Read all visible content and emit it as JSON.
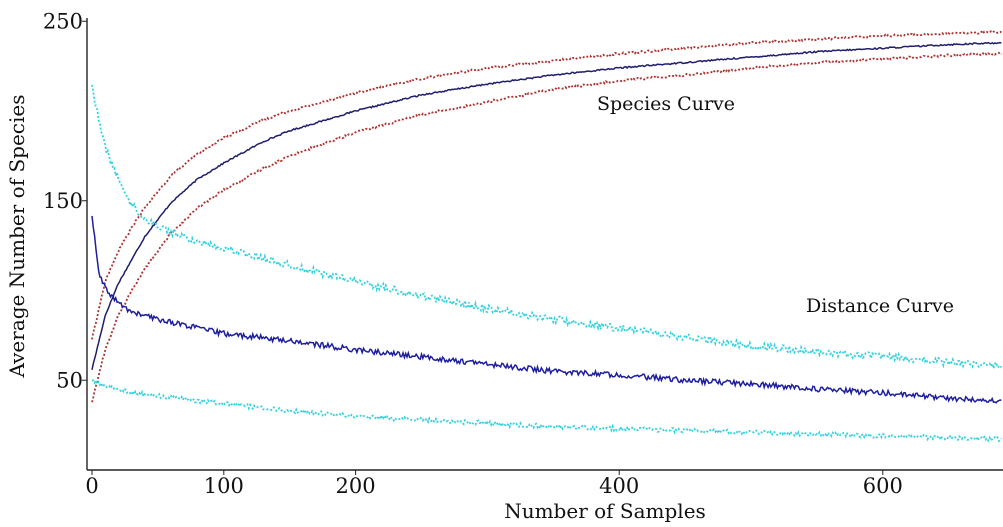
{
  "chart_data": {
    "type": "line",
    "title": "",
    "xlabel": "Number of Samples",
    "ylabel": "Average Number of Species",
    "xlim": [
      0,
      690
    ],
    "ylim": [
      0,
      250
    ],
    "xticks": [
      {
        "value": 0,
        "label": "0"
      },
      {
        "value": 100,
        "label": "100"
      },
      {
        "value": 200,
        "label": "200"
      },
      {
        "value": 400,
        "label": "400"
      },
      {
        "value": 600,
        "label": "600"
      }
    ],
    "yticks": [
      {
        "value": 50,
        "label": "50"
      },
      {
        "value": 150,
        "label": "150"
      },
      {
        "value": 250,
        "label": "250"
      }
    ],
    "grid": false,
    "legend": "none",
    "annotations": [
      {
        "text": "Species Curve",
        "x": 380,
        "y": 196
      },
      {
        "text": "Distance Curve",
        "x": 537,
        "y": 86
      }
    ],
    "series": [
      {
        "role": "species-mean",
        "color": "#1f1f6e",
        "style": "solid",
        "noise": 0.4,
        "x": [
          0,
          10,
          20,
          30,
          40,
          60,
          80,
          100,
          130,
          150,
          200,
          250,
          300,
          350,
          400,
          450,
          500,
          550,
          600,
          650,
          690
        ],
        "y": [
          56,
          86,
          104,
          117,
          130,
          149,
          162,
          171,
          183,
          189,
          200,
          209,
          215,
          220,
          224,
          227,
          230,
          233,
          235,
          237,
          238
        ]
      },
      {
        "role": "species-upper",
        "color": "#b03030",
        "style": "dotted",
        "noise": 0.6,
        "x": [
          0,
          10,
          20,
          30,
          40,
          60,
          80,
          100,
          130,
          150,
          200,
          250,
          300,
          350,
          400,
          450,
          500,
          550,
          600,
          650,
          690
        ],
        "y": [
          73,
          105,
          122,
          135,
          146,
          164,
          176,
          185,
          195,
          200,
          210,
          218,
          224,
          228,
          232,
          235,
          238,
          240,
          242,
          243,
          244
        ]
      },
      {
        "role": "species-lower",
        "color": "#b03030",
        "style": "dotted",
        "noise": 0.6,
        "x": [
          0,
          10,
          20,
          30,
          40,
          60,
          80,
          100,
          130,
          150,
          200,
          250,
          300,
          350,
          400,
          450,
          500,
          550,
          600,
          650,
          690
        ],
        "y": [
          38,
          67,
          86,
          100,
          112,
          132,
          146,
          156,
          168,
          175,
          188,
          198,
          205,
          212,
          217,
          220,
          224,
          227,
          229,
          231,
          232
        ]
      },
      {
        "role": "distance-mean",
        "color": "#1e1e9e",
        "style": "solid",
        "noise": 1.5,
        "x": [
          0,
          5,
          10,
          20,
          30,
          50,
          75,
          100,
          150,
          200,
          250,
          300,
          350,
          400,
          450,
          500,
          550,
          600,
          650,
          690
        ],
        "y": [
          142,
          110,
          101,
          93,
          88,
          84,
          80,
          76,
          72,
          67,
          63,
          59,
          55,
          53,
          50,
          48,
          45,
          43,
          40,
          38
        ]
      },
      {
        "role": "distance-upper",
        "color": "#35d2e0",
        "style": "dotted",
        "noise": 2.0,
        "x": [
          0,
          5,
          10,
          20,
          30,
          40,
          50,
          75,
          100,
          150,
          200,
          250,
          300,
          350,
          400,
          450,
          500,
          550,
          600,
          650,
          690
        ],
        "y": [
          215,
          195,
          180,
          162,
          148,
          140,
          136,
          128,
          124,
          114,
          105,
          97,
          90,
          84,
          79,
          74,
          69,
          66,
          63,
          60,
          58
        ]
      },
      {
        "role": "distance-lower",
        "color": "#35d2e0",
        "style": "dotted",
        "noise": 1.2,
        "x": [
          0,
          5,
          10,
          20,
          30,
          50,
          75,
          100,
          150,
          200,
          250,
          300,
          350,
          400,
          450,
          500,
          550,
          600,
          650,
          690
        ],
        "y": [
          50,
          48,
          47,
          45,
          43,
          41,
          39,
          37,
          33,
          30,
          28,
          26,
          24,
          23,
          22,
          21,
          20,
          19,
          18,
          17
        ]
      }
    ]
  }
}
